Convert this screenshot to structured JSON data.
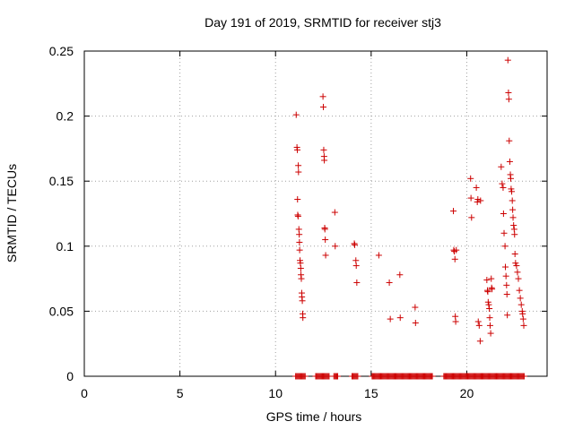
{
  "chart_data": {
    "type": "scatter",
    "title": "Day 191 of 2019, SRMTID for receiver stj3",
    "xlabel": "GPS time / hours",
    "ylabel": "SRMTID / TECUs",
    "xlim": [
      0,
      24.2
    ],
    "ylim": [
      0,
      0.25
    ],
    "x_ticks": [
      0,
      5,
      10,
      15,
      20
    ],
    "x_tick_labels": [
      "0",
      "5",
      "10",
      "15",
      "20"
    ],
    "y_ticks": [
      0,
      0.05,
      0.1,
      0.15,
      0.2,
      0.25
    ],
    "y_tick_labels": [
      "0",
      "0.05",
      "0.1",
      "0.15",
      "0.2",
      "0.25"
    ],
    "grid": true,
    "legend": "none",
    "series": [
      {
        "name": "SRMTID",
        "color": "#cc0000",
        "marker": "plus",
        "x": [
          11.08,
          11.12,
          11.14,
          11.15,
          11.16,
          11.18,
          11.19,
          11.2,
          11.22,
          11.24,
          11.25,
          11.26,
          11.28,
          11.3,
          11.32,
          11.33,
          11.35,
          11.37,
          11.38,
          11.4,
          11.42,
          11.43,
          12.48,
          12.5,
          12.52,
          12.54,
          12.55,
          12.57,
          12.58,
          12.6,
          12.62,
          13.1,
          13.12,
          14.12,
          14.14,
          14.2,
          14.22,
          14.25,
          15.4,
          15.95,
          16,
          16.5,
          16.52,
          17.3,
          17.32,
          19.3,
          19.32,
          19.35,
          19.38,
          19.4,
          19.42,
          19.45,
          20.2,
          20.22,
          20.25,
          20.5,
          20.55,
          20.58,
          20.6,
          20.65,
          20.7,
          20.72,
          21.05,
          21.08,
          21.1,
          21.12,
          21.15,
          21.18,
          21.2,
          21.22,
          21.25,
          21.28,
          21.3,
          21.32,
          21.8,
          21.85,
          21.9,
          21.92,
          21.95,
          22,
          22.02,
          22.05,
          22.08,
          22.1,
          22.12,
          22.15,
          22.18,
          22.2,
          22.22,
          22.25,
          22.28,
          22.3,
          22.32,
          22.35,
          22.38,
          22.4,
          22.42,
          22.45,
          22.48,
          22.5,
          22.52,
          22.55,
          22.6,
          22.65,
          22.7,
          22.75,
          22.8,
          22.85,
          22.9,
          22.92,
          22.95,
          22.98
        ],
        "y": [
          0.201,
          0.176,
          0.174,
          0.136,
          0.124,
          0.123,
          0.162,
          0.157,
          0.113,
          0.109,
          0.103,
          0.097,
          0.089,
          0.087,
          0.083,
          0.078,
          0.075,
          0.064,
          0.061,
          0.058,
          0.048,
          0.045,
          0.215,
          0.207,
          0.174,
          0.169,
          0.166,
          0.114,
          0.113,
          0.105,
          0.093,
          0.126,
          0.1,
          0.102,
          0.101,
          0.089,
          0.085,
          0.072,
          0.093,
          0.072,
          0.044,
          0.078,
          0.045,
          0.053,
          0.041,
          0.127,
          0.097,
          0.096,
          0.09,
          0.046,
          0.042,
          0.097,
          0.152,
          0.137,
          0.122,
          0.145,
          0.134,
          0.136,
          0.042,
          0.039,
          0.027,
          0.135,
          0.074,
          0.066,
          0.065,
          0.057,
          0.055,
          0.052,
          0.045,
          0.039,
          0.033,
          0.075,
          0.068,
          0.067,
          0.161,
          0.148,
          0.145,
          0.125,
          0.11,
          0.1,
          0.084,
          0.077,
          0.07,
          0.063,
          0.047,
          0.243,
          0.218,
          0.213,
          0.181,
          0.165,
          0.155,
          0.152,
          0.144,
          0.142,
          0.135,
          0.128,
          0.122,
          0.116,
          0.113,
          0.109,
          0.094,
          0.087,
          0.085,
          0.08,
          0.075,
          0.066,
          0.06,
          0.055,
          0.05,
          0.048,
          0.044,
          0.039
        ],
        "zero_x": [
          11.05,
          11.1,
          11.15,
          11.2,
          11.25,
          11.3,
          11.35,
          11.4,
          11.45,
          11.5,
          11.55,
          12.1,
          12.15,
          12.2,
          12.25,
          12.3,
          12.35,
          12.4,
          12.45,
          12.5,
          12.55,
          12.6,
          12.65,
          12.7,
          12.75,
          12.8,
          13.05,
          13.1,
          13.15,
          13.2,
          13.25,
          14.0,
          14.05,
          14.1,
          14.15,
          14.2,
          14.25,
          14.3,
          15.05,
          15.1,
          15.15,
          15.2,
          15.25,
          15.3,
          15.35,
          15.4,
          15.45,
          15.5,
          15.55,
          15.6,
          15.65,
          15.7,
          15.75,
          15.8,
          15.85,
          15.9,
          15.95,
          16.0,
          16.05,
          16.1,
          16.15,
          16.2,
          16.25,
          16.3,
          16.35,
          16.4,
          16.45,
          16.5,
          16.55,
          16.6,
          16.65,
          16.7,
          16.75,
          16.8,
          16.85,
          16.9,
          16.95,
          17.0,
          17.05,
          17.1,
          17.15,
          17.2,
          17.25,
          17.3,
          17.35,
          17.4,
          17.45,
          17.5,
          17.55,
          17.6,
          17.65,
          17.7,
          17.75,
          17.8,
          17.85,
          17.9,
          17.95,
          18.0,
          18.05,
          18.1,
          18.15,
          18.2,
          18.8,
          18.85,
          18.9,
          18.95,
          19.0,
          19.05,
          19.1,
          19.15,
          19.2,
          19.25,
          19.3,
          19.35,
          19.4,
          19.45,
          19.5,
          19.55,
          19.6,
          19.65,
          19.7,
          19.75,
          19.8,
          19.85,
          19.9,
          19.95,
          20.0,
          20.05,
          20.1,
          20.15,
          20.2,
          20.25,
          20.3,
          20.35,
          20.4,
          20.45,
          20.5,
          20.55,
          20.6,
          20.65,
          20.7,
          20.75,
          20.8,
          20.85,
          20.9,
          20.95,
          21.0,
          21.05,
          21.1,
          21.15,
          21.2,
          21.25,
          21.3,
          21.35,
          21.4,
          21.45,
          21.5,
          21.55,
          21.6,
          21.65,
          21.7,
          21.75,
          21.8,
          21.85,
          21.9,
          21.95,
          22.0,
          22.05,
          22.1,
          22.15,
          22.2,
          22.25,
          22.3,
          22.35,
          22.4,
          22.45,
          22.5,
          22.55,
          22.6,
          22.65,
          22.7,
          22.75,
          22.8,
          22.85,
          22.9,
          22.95,
          23.0
        ]
      }
    ]
  }
}
